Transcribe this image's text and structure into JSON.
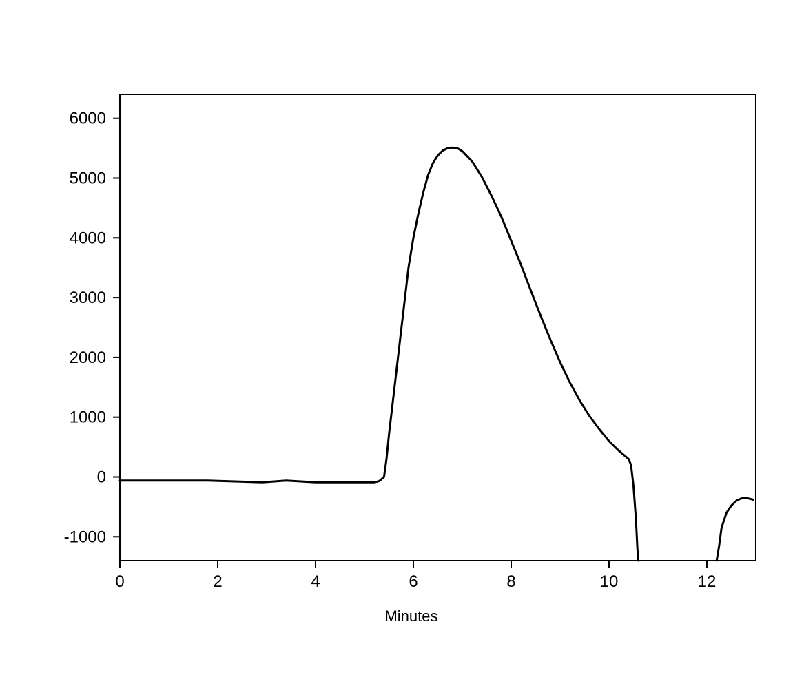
{
  "chart_data": {
    "type": "line",
    "title": "",
    "xlabel": "Minutes",
    "ylabel": "",
    "xlim": [
      0,
      13.0
    ],
    "ylim": [
      -1400,
      6400
    ],
    "x_ticks": [
      0,
      2,
      4,
      6,
      8,
      10,
      12
    ],
    "x_tick_labels": [
      "0",
      "2",
      "4",
      "6",
      "8",
      "10",
      "12"
    ],
    "y_ticks": [
      -1000,
      0,
      1000,
      2000,
      3000,
      4000,
      5000,
      6000
    ],
    "y_tick_labels": [
      "-1000",
      "0",
      "1000",
      "2000",
      "3000",
      "4000",
      "5000",
      "6000"
    ],
    "grid": false,
    "legend": "none",
    "line_color": "#000000",
    "series": [
      {
        "segments": [
          {
            "x": [
              0.0,
              0.6,
              0.9,
              1.8,
              2.9,
              3.4,
              4.0,
              5.2,
              5.3,
              5.4,
              5.45,
              5.5,
              5.6,
              5.7,
              5.8,
              5.9,
              6.0,
              6.1,
              6.2,
              6.3,
              6.4,
              6.5,
              6.6,
              6.7,
              6.8,
              6.9,
              7.0,
              7.2,
              7.4,
              7.6,
              7.8,
              8.0,
              8.2,
              8.4,
              8.6,
              8.8,
              9.0,
              9.2,
              9.4,
              9.6,
              9.8,
              10.0,
              10.2,
              10.3,
              10.4,
              10.45,
              10.5,
              10.55,
              10.58,
              10.6
            ],
            "y": [
              -60,
              -60,
              -60,
              -60,
              -90,
              -60,
              -90,
              -90,
              -70,
              0,
              300,
              700,
              1400,
              2100,
              2800,
              3500,
              4000,
              4400,
              4750,
              5050,
              5250,
              5380,
              5460,
              5500,
              5510,
              5500,
              5450,
              5280,
              5020,
              4700,
              4350,
              3950,
              3550,
              3120,
              2700,
              2300,
              1920,
              1580,
              1280,
              1020,
              800,
              600,
              440,
              370,
              300,
              200,
              -150,
              -700,
              -1200,
              -1400
            ]
          },
          {
            "x": [
              12.2,
              12.25,
              12.3,
              12.4,
              12.5,
              12.6,
              12.7,
              12.8,
              12.9,
              12.95
            ],
            "y": [
              -1400,
              -1150,
              -850,
              -600,
              -480,
              -400,
              -360,
              -350,
              -370,
              -380
            ]
          }
        ]
      }
    ]
  }
}
